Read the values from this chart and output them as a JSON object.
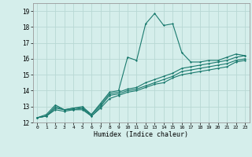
{
  "xlabel": "Humidex (Indice chaleur)",
  "bg_color": "#d5eeeb",
  "grid_color": "#b8d8d4",
  "line_color": "#1a7a6e",
  "xlim": [
    -0.5,
    23.5
  ],
  "ylim": [
    12,
    19.5
  ],
  "yticks": [
    12,
    13,
    14,
    15,
    16,
    17,
    18,
    19
  ],
  "xticks": [
    0,
    1,
    2,
    3,
    4,
    5,
    6,
    7,
    8,
    9,
    10,
    11,
    12,
    13,
    14,
    15,
    16,
    17,
    18,
    19,
    20,
    21,
    22,
    23
  ],
  "series1_x": [
    0,
    1,
    2,
    3,
    4,
    5,
    6,
    7,
    8,
    9,
    10,
    11,
    12,
    13,
    14,
    15,
    16,
    17,
    18,
    19,
    20,
    21,
    22,
    23
  ],
  "series1_y": [
    12.3,
    12.5,
    13.1,
    12.8,
    12.9,
    13.0,
    12.5,
    13.2,
    13.9,
    14.0,
    16.1,
    15.9,
    18.2,
    18.85,
    18.1,
    18.2,
    16.4,
    15.8,
    15.8,
    15.9,
    15.9,
    16.1,
    16.3,
    16.2
  ],
  "series2_x": [
    0,
    1,
    2,
    3,
    4,
    5,
    6,
    7,
    8,
    9,
    10,
    11,
    12,
    13,
    14,
    15,
    16,
    17,
    18,
    19,
    20,
    21,
    22,
    23
  ],
  "series2_y": [
    12.3,
    12.4,
    13.0,
    12.8,
    12.9,
    12.9,
    12.5,
    13.1,
    13.8,
    13.9,
    14.1,
    14.2,
    14.5,
    14.7,
    14.9,
    15.1,
    15.4,
    15.5,
    15.6,
    15.7,
    15.8,
    15.9,
    16.1,
    16.2
  ],
  "series3_x": [
    0,
    1,
    2,
    3,
    4,
    5,
    6,
    7,
    8,
    9,
    10,
    11,
    12,
    13,
    14,
    15,
    16,
    17,
    18,
    19,
    20,
    21,
    22,
    23
  ],
  "series3_y": [
    12.3,
    12.4,
    12.9,
    12.8,
    12.8,
    12.9,
    12.4,
    13.0,
    13.7,
    13.8,
    14.0,
    14.1,
    14.3,
    14.5,
    14.7,
    14.9,
    15.2,
    15.3,
    15.4,
    15.5,
    15.6,
    15.7,
    15.9,
    16.0
  ],
  "series4_x": [
    0,
    1,
    2,
    3,
    4,
    5,
    6,
    7,
    8,
    9,
    10,
    11,
    12,
    13,
    14,
    15,
    16,
    17,
    18,
    19,
    20,
    21,
    22,
    23
  ],
  "series4_y": [
    12.3,
    12.4,
    12.8,
    12.7,
    12.8,
    12.8,
    12.4,
    12.9,
    13.5,
    13.7,
    13.9,
    14.0,
    14.2,
    14.4,
    14.5,
    14.8,
    15.0,
    15.1,
    15.2,
    15.3,
    15.4,
    15.5,
    15.8,
    15.9
  ]
}
